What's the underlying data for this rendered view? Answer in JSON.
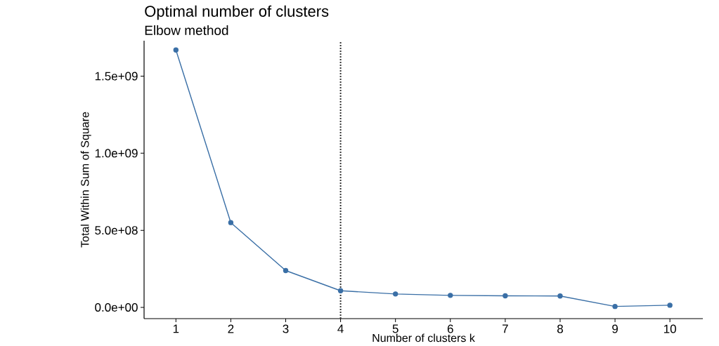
{
  "chart_data": {
    "type": "line",
    "title": "Optimal number of clusters",
    "subtitle": "Elbow method",
    "xlabel": "Number of clusters k",
    "ylabel": "Total Within Sum of Square",
    "x": [
      1,
      2,
      3,
      4,
      5,
      6,
      7,
      8,
      9,
      10
    ],
    "series": [
      {
        "color": "#3a6fa6",
        "values": [
          1670000000,
          550000000,
          239000000,
          108000000,
          87000000,
          78000000,
          75000000,
          74000000,
          6000000,
          14000000
        ]
      }
    ],
    "xlim": [
      0.42,
      10.6
    ],
    "ylim": [
      -73000000,
      1730000000
    ],
    "xticks": [
      1,
      2,
      3,
      4,
      5,
      6,
      7,
      8,
      9,
      10
    ],
    "yticks": [
      {
        "value": 0,
        "label": "0.0e+00"
      },
      {
        "value": 500000000,
        "label": "5.0e+08"
      },
      {
        "value": 1000000000,
        "label": "1.0e+09"
      },
      {
        "value": 1500000000,
        "label": "1.5e+09"
      }
    ],
    "ref_lines": [
      {
        "axis": "x",
        "value": 4,
        "color": "#333333",
        "line_style": "dotted"
      }
    ],
    "marker": "circle",
    "line_style": "solid",
    "grid": false
  }
}
